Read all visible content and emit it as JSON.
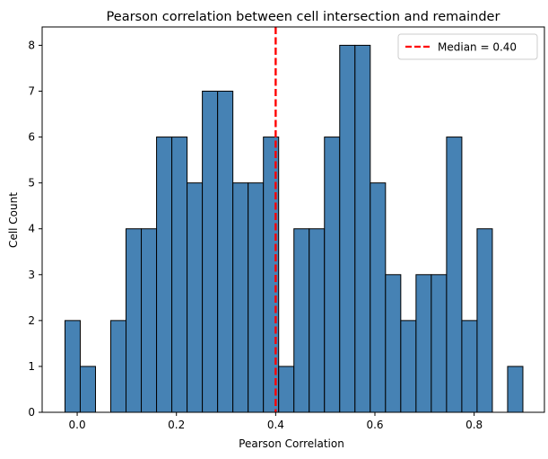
{
  "chart_data": {
    "type": "bar",
    "title": "Pearson correlation between cell intersection and remainder",
    "xlabel": "Pearson Correlation",
    "ylabel": "Cell Count",
    "xlim": [
      -0.0706,
      0.9416
    ],
    "ylim": [
      0,
      8.4
    ],
    "x_ticks": [
      0.0,
      0.2,
      0.4,
      0.6,
      0.8
    ],
    "x_tick_labels": [
      "0.0",
      "0.2",
      "0.4",
      "0.6",
      "0.8"
    ],
    "y_ticks": [
      0,
      1,
      2,
      3,
      4,
      5,
      6,
      7,
      8
    ],
    "y_tick_labels": [
      "0",
      "1",
      "2",
      "3",
      "4",
      "5",
      "6",
      "7",
      "8"
    ],
    "bin_start": -0.0246,
    "bin_width": 0.03076,
    "values": [
      2,
      1,
      0,
      2,
      4,
      4,
      6,
      6,
      5,
      7,
      7,
      5,
      5,
      6,
      1,
      4,
      4,
      6,
      8,
      8,
      5,
      3,
      2,
      3,
      3,
      6,
      2,
      4,
      0,
      1
    ],
    "bar_color": "#4682b4",
    "edge_color": "#000000",
    "median": {
      "value": 0.4,
      "label": "Median = 0.40",
      "color": "#ff0000"
    },
    "legend_position": "top-right",
    "grid": false
  }
}
